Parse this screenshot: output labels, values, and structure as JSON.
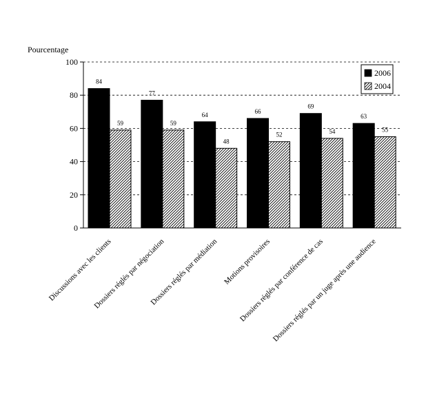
{
  "chart_data": {
    "type": "bar",
    "ylabel": "Pourcentage",
    "ylim": [
      0,
      100
    ],
    "yticks": [
      0,
      20,
      40,
      60,
      80,
      100
    ],
    "grid": "horizontal-dashed",
    "legend_placement": "top-right",
    "categories": [
      "Discussions avec les clients",
      "Dossiers réglés par négociation",
      "Dossiers réglés par médiation",
      "Motions provisoires",
      "Dossiers réglés par conférence de cas",
      "Dossiers réglés par un juge après une audience"
    ],
    "series": [
      {
        "name": "2006",
        "fill": "#000000",
        "pattern": "solid",
        "values": [
          84,
          77,
          64,
          66,
          69,
          63
        ]
      },
      {
        "name": "2004",
        "fill": "#ffffff",
        "pattern": "diagonal-hatch",
        "values": [
          59,
          59,
          48,
          52,
          54,
          55
        ]
      }
    ]
  }
}
